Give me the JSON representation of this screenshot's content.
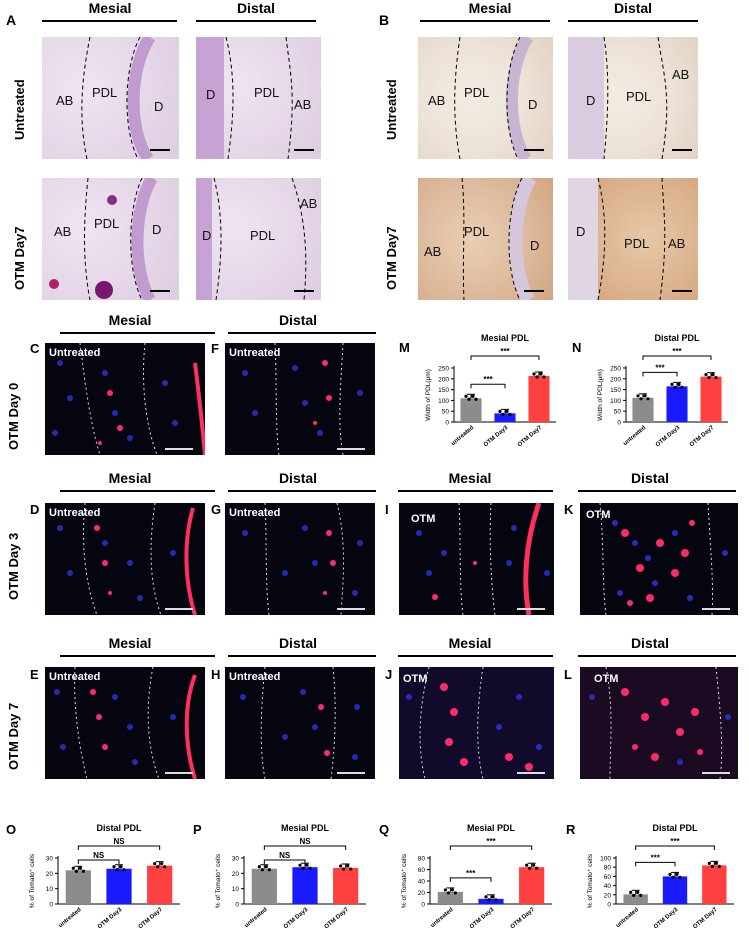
{
  "top": {
    "panelA": {
      "letter": "A",
      "mesial": "Mesial",
      "distal": "Distal",
      "row1": "Untreated",
      "row2": "OTM Day7",
      "labels": {
        "AB": "AB",
        "PDL": "PDL",
        "D": "D"
      }
    },
    "panelB": {
      "letter": "B",
      "mesial": "Mesial",
      "distal": "Distal",
      "row1": "Untreated",
      "row2": "OTM  Day7",
      "labels": {
        "AB": "AB",
        "PDL": "PDL",
        "D": "D"
      }
    }
  },
  "fluoro": {
    "row0": "OTM Day 0",
    "row3": "OTM Day 3",
    "row7": "OTM Day 7",
    "mesial": "Mesial",
    "distal": "Distal",
    "untreated": "Untreated",
    "otm": "OTM",
    "letters": {
      "C": "C",
      "F": "F",
      "D": "D",
      "G": "G",
      "I": "I",
      "K": "K",
      "E": "E",
      "H": "H",
      "J": "J",
      "L": "L",
      "M": "M",
      "N": "N",
      "O": "O",
      "P": "P",
      "Q": "Q",
      "R": "R"
    }
  },
  "chart_data": [
    {
      "panel": "M",
      "type": "bar",
      "title": "Mesial PDL",
      "ylabel": "Width of PDL(μm)",
      "categories": [
        "untreated",
        "OTM Day3",
        "OTM Day7"
      ],
      "values": [
        110,
        40,
        213
      ],
      "colors": [
        "#8c8c8c",
        "#1a1aff",
        "#ff4040"
      ],
      "ylim": [
        0,
        250
      ],
      "yticks": [
        0,
        50,
        100,
        150,
        200,
        250
      ],
      "sig": [
        "***",
        "***"
      ]
    },
    {
      "panel": "N",
      "type": "bar",
      "title": "Distal PDL",
      "ylabel": "Width of PDL(μm)",
      "categories": [
        "untreated",
        "OTM Day3",
        "OTM Day7"
      ],
      "values": [
        112,
        165,
        210
      ],
      "colors": [
        "#8c8c8c",
        "#1a1aff",
        "#ff4040"
      ],
      "ylim": [
        0,
        250
      ],
      "yticks": [
        0,
        50,
        100,
        150,
        200,
        250
      ],
      "sig": [
        "***",
        "***"
      ]
    },
    {
      "panel": "O",
      "type": "bar",
      "title": "Distal PDL",
      "ylabel": "% of Tomato⁺ cells",
      "categories": [
        "untreated",
        "OTM Day3",
        "OTM Day7"
      ],
      "values": [
        22,
        23,
        25
      ],
      "colors": [
        "#8c8c8c",
        "#1a1aff",
        "#ff4040"
      ],
      "ylim": [
        0,
        30
      ],
      "yticks": [
        0,
        10,
        20,
        30
      ],
      "sig": [
        "NS",
        "NS"
      ]
    },
    {
      "panel": "P",
      "type": "bar",
      "title": "Mesial PDL",
      "ylabel": "% of Tomato⁺ cells",
      "categories": [
        "untreated",
        "OTM Day3",
        "OTM Day7"
      ],
      "values": [
        23,
        24,
        23.5
      ],
      "colors": [
        "#8c8c8c",
        "#1a1aff",
        "#ff4040"
      ],
      "ylim": [
        0,
        30
      ],
      "yticks": [
        0,
        10,
        20,
        30
      ],
      "sig": [
        "NS",
        "NS"
      ]
    },
    {
      "panel": "Q",
      "type": "bar",
      "title": "Mesial PDL",
      "ylabel": "% of Tomato⁺ cells",
      "categories": [
        "untreated",
        "OTM Day3",
        "OTM Day7"
      ],
      "values": [
        21,
        9,
        64
      ],
      "colors": [
        "#8c8c8c",
        "#1a1aff",
        "#ff4040"
      ],
      "ylim": [
        0,
        80
      ],
      "yticks": [
        0,
        20,
        40,
        60,
        80
      ],
      "sig": [
        "***",
        "***"
      ]
    },
    {
      "panel": "R",
      "type": "bar",
      "title": "Distal PDL",
      "ylabel": "% of Tomato⁺ cells",
      "categories": [
        "untreated",
        "OTM Day3",
        "OTM Day7"
      ],
      "values": [
        21,
        60,
        84
      ],
      "colors": [
        "#8c8c8c",
        "#1a1aff",
        "#ff4040"
      ],
      "ylim": [
        0,
        100
      ],
      "yticks": [
        0,
        20,
        40,
        60,
        80,
        100
      ],
      "sig": [
        "***",
        "***"
      ]
    }
  ]
}
